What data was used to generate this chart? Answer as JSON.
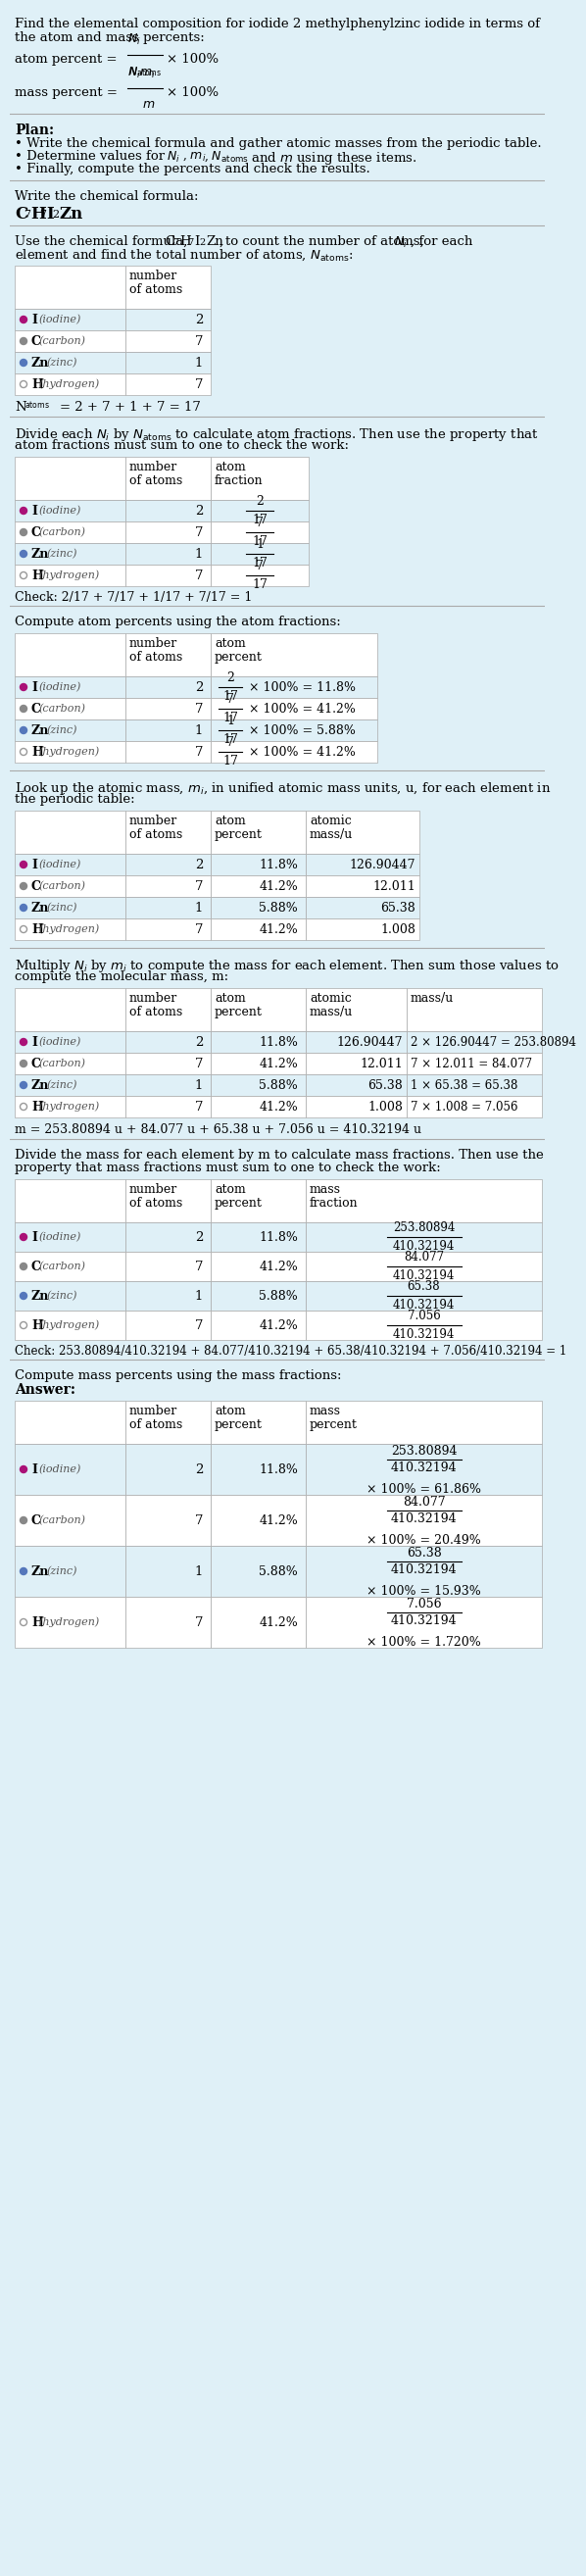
{
  "bg_color": "#dff0f7",
  "elements": [
    "I (iodine)",
    "C (carbon)",
    "Zn (zinc)",
    "H (hydrogen)"
  ],
  "symbols": [
    "I",
    "C",
    "Zn",
    "H"
  ],
  "names": [
    "iodine",
    "carbon",
    "zinc",
    "hydrogen"
  ],
  "dot_colors": [
    "#aa1177",
    "#888888",
    "#5577bb",
    "#ffffff"
  ],
  "dot_edge_colors": [
    "#aa1177",
    "#888888",
    "#5577bb",
    "#999999"
  ],
  "N_i": [
    2,
    7,
    1,
    7
  ],
  "atom_fractions": [
    "2/17",
    "7/17",
    "1/17",
    "7/17"
  ],
  "atom_percents": [
    "11.8%",
    "41.2%",
    "5.88%",
    "41.2%"
  ],
  "atomic_mass_strs": [
    "126.90447",
    "12.011",
    "65.38",
    "1.008"
  ],
  "mass_calcs": [
    "2 × 126.90447 = 253.80894",
    "7 × 12.011 = 84.077",
    "1 × 65.38 = 65.38",
    "7 × 1.008 = 7.056"
  ],
  "molecular_mass_str": "410.32194",
  "mass_sum_str": "m = 253.80894 u + 84.077 u + 65.38 u + 7.056 u = 410.32194 u",
  "mass_percents": [
    "61.86%",
    "20.49%",
    "15.93%",
    "1.720%"
  ],
  "mass_nums": [
    "253.80894",
    "84.077",
    "65.38",
    "7.056"
  ],
  "check9": "253.80894/410.32194 + 84.077/410.32194 + 65.38/410.32194 + 7.056/410.32194 = 1"
}
